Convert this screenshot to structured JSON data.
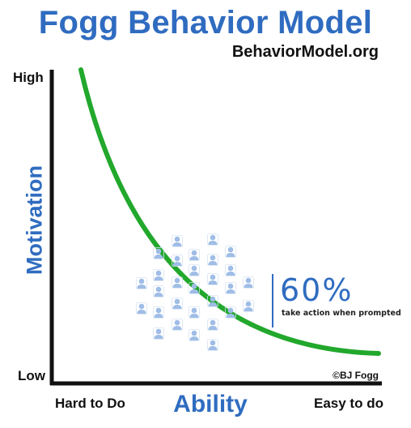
{
  "title": "Fogg Behavior Model",
  "subtitle": "BehaviorModel.org",
  "y_axis": {
    "label": "Motivation",
    "high": "High",
    "low": "Low"
  },
  "x_axis": {
    "label": "Ability",
    "low": "Hard to Do",
    "high": "Easy to do"
  },
  "callout": {
    "percent": "60%",
    "note": "take action when prompted"
  },
  "copyright": "©BJ Fogg",
  "colors": {
    "title": "#2f6cc0",
    "curve": "#22a82c",
    "axes": "#111111",
    "person": "#9fbde6"
  },
  "icons": [
    "person-icon"
  ]
}
